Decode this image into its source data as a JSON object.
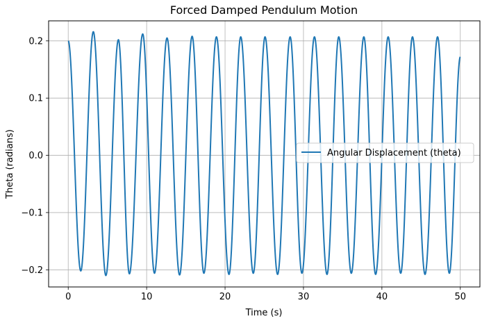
{
  "chart_data": {
    "type": "line",
    "title": "Forced Damped Pendulum Motion",
    "xlabel": "Time (s)",
    "ylabel": "Theta (radians)",
    "xlim": [
      -2.5,
      52.5
    ],
    "ylim": [
      -0.23,
      0.235
    ],
    "xticks": [
      0,
      10,
      20,
      30,
      40,
      50
    ],
    "xtick_labels": [
      "0",
      "10",
      "20",
      "30",
      "40",
      "50"
    ],
    "yticks": [
      -0.2,
      -0.1,
      0.0,
      0.1,
      0.2
    ],
    "ytick_labels": [
      "−0.2",
      "−0.1",
      "0.0",
      "0.1",
      "0.2"
    ],
    "grid": true,
    "legend_position": "center-right",
    "series": [
      {
        "name": "Angular Displacement (theta)",
        "color": "#1f77b4",
        "x": [
          0.0,
          1.6,
          3.2,
          4.8,
          6.4,
          7.8,
          9.5,
          11.0,
          12.6,
          14.2,
          15.8,
          17.3,
          18.9,
          20.5,
          22.0,
          23.6,
          25.1,
          26.7,
          28.3,
          29.8,
          31.4,
          33.0,
          34.5,
          36.1,
          37.7,
          39.2,
          40.8,
          42.4,
          43.9,
          45.5,
          47.1,
          48.6,
          50.0
        ],
        "y": [
          0.2,
          -0.202,
          0.216,
          -0.21,
          0.202,
          -0.207,
          0.212,
          -0.206,
          0.205,
          -0.209,
          0.208,
          -0.206,
          0.207,
          -0.208,
          0.207,
          -0.206,
          0.207,
          -0.208,
          0.207,
          -0.206,
          0.207,
          -0.208,
          0.207,
          -0.206,
          0.207,
          -0.208,
          0.207,
          -0.206,
          0.207,
          -0.208,
          0.207,
          -0.206,
          0.172
        ]
      }
    ]
  }
}
